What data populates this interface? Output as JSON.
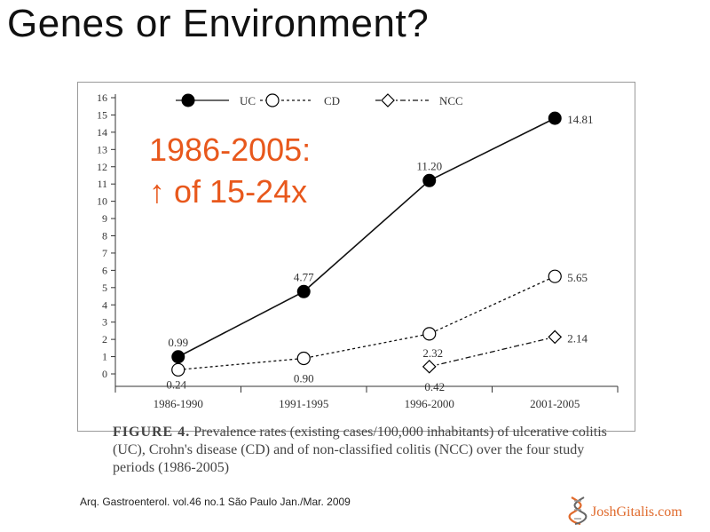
{
  "slide": {
    "title": "Genes or Environment?"
  },
  "callout": {
    "line1": "1986-2005:",
    "line2": "↑ of 15-24x"
  },
  "caption": {
    "label": "FIGURE 4.",
    "text": " Prevalence rates (existing cases/100,000 inhabitants) of ulcerative colitis (UC), Crohn's disease (CD) and of non-classified colitis (NCC) over the four study periods (1986-2005)"
  },
  "citation": "Arq. Gastroenterol. vol.46 no.1 São Paulo Jan./Mar. 2009",
  "brand": {
    "text": "JoshGitalis.com",
    "icon": "dna-helix-icon",
    "color": "#e06a2c"
  },
  "colors": {
    "accent": "#e8581c",
    "axis": "#333333"
  },
  "chart_data": {
    "type": "line",
    "title": "",
    "xlabel": "",
    "ylabel": "",
    "categories": [
      "1986-1990",
      "1991-1995",
      "1996-2000",
      "2001-2005"
    ],
    "ylim": [
      0,
      16
    ],
    "yticks": [
      0,
      1,
      2,
      3,
      4,
      5,
      6,
      7,
      8,
      9,
      10,
      11,
      12,
      13,
      14,
      15,
      16
    ],
    "grid": false,
    "legend_position": "top",
    "series": [
      {
        "name": "UC",
        "marker": "filled-circle",
        "line": "solid",
        "values": [
          0.99,
          4.77,
          11.2,
          14.81
        ],
        "labels": [
          "0.99",
          "4.77",
          "11.20",
          "14.81"
        ]
      },
      {
        "name": "CD",
        "marker": "open-circle",
        "line": "dashed",
        "values": [
          0.24,
          0.9,
          2.32,
          5.65
        ],
        "labels": [
          "0.24",
          "0.90",
          "2.32",
          "5.65"
        ]
      },
      {
        "name": "NCC",
        "marker": "open-diamond",
        "line": "dash-dot",
        "values": [
          null,
          null,
          0.42,
          2.14
        ],
        "labels": [
          null,
          null,
          "0.42",
          "2.14"
        ]
      }
    ]
  }
}
